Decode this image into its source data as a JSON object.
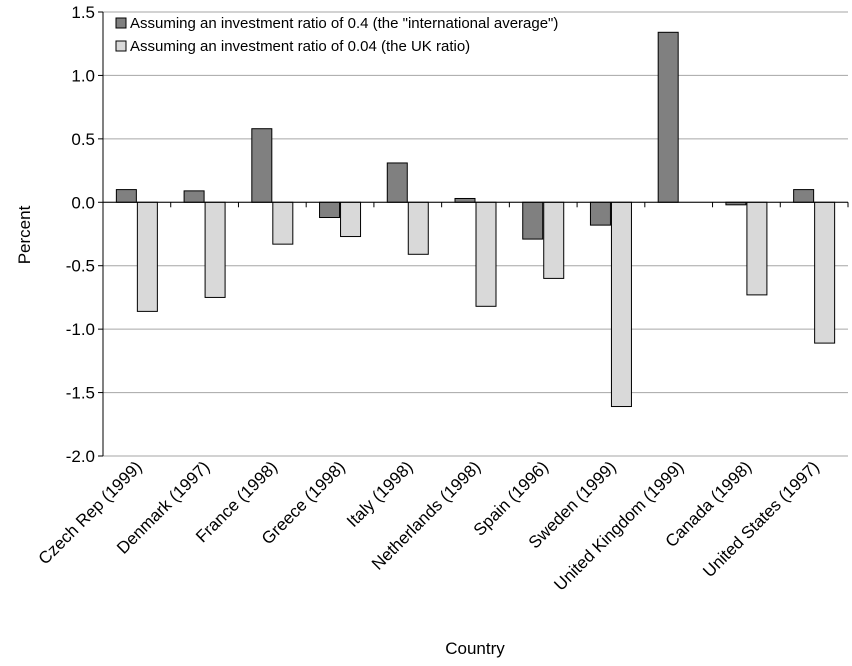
{
  "chart_data": {
    "type": "bar",
    "xlabel": "Country",
    "ylabel": "Percent",
    "ylim": [
      -2.0,
      1.5
    ],
    "yticks": [
      "1.5",
      "1.0",
      "0.5",
      "0.0",
      "-0.5",
      "-1.0",
      "-1.5",
      "-2.0"
    ],
    "ytick_values": [
      1.5,
      1.0,
      0.5,
      0.0,
      -0.5,
      -1.0,
      -1.5,
      -2.0
    ],
    "grid": true,
    "legend_position": "top",
    "categories": [
      "Czech Rep (1999)",
      "Denmark (1997)",
      "France (1998)",
      "Greece (1998)",
      "Italy (1998)",
      "Netherlands (1998)",
      "Spain (1996)",
      "Sweden (1999)",
      "United Kingdom (1999)",
      "Canada (1998)",
      "United States (1997)"
    ],
    "series": [
      {
        "name": "Assuming an investment ratio of 0.4 (the \"international average\")",
        "color": "#808080",
        "values": [
          0.1,
          0.09,
          0.58,
          -0.12,
          0.31,
          0.03,
          -0.29,
          -0.18,
          1.34,
          -0.02,
          0.1
        ]
      },
      {
        "name": "Assuming an investment ratio of 0.04 (the UK ratio)",
        "color": "#d9d9d9",
        "values": [
          -0.86,
          -0.75,
          -0.33,
          -0.27,
          -0.41,
          -0.82,
          -0.6,
          -1.61,
          null,
          -0.73,
          -1.11
        ]
      }
    ]
  }
}
